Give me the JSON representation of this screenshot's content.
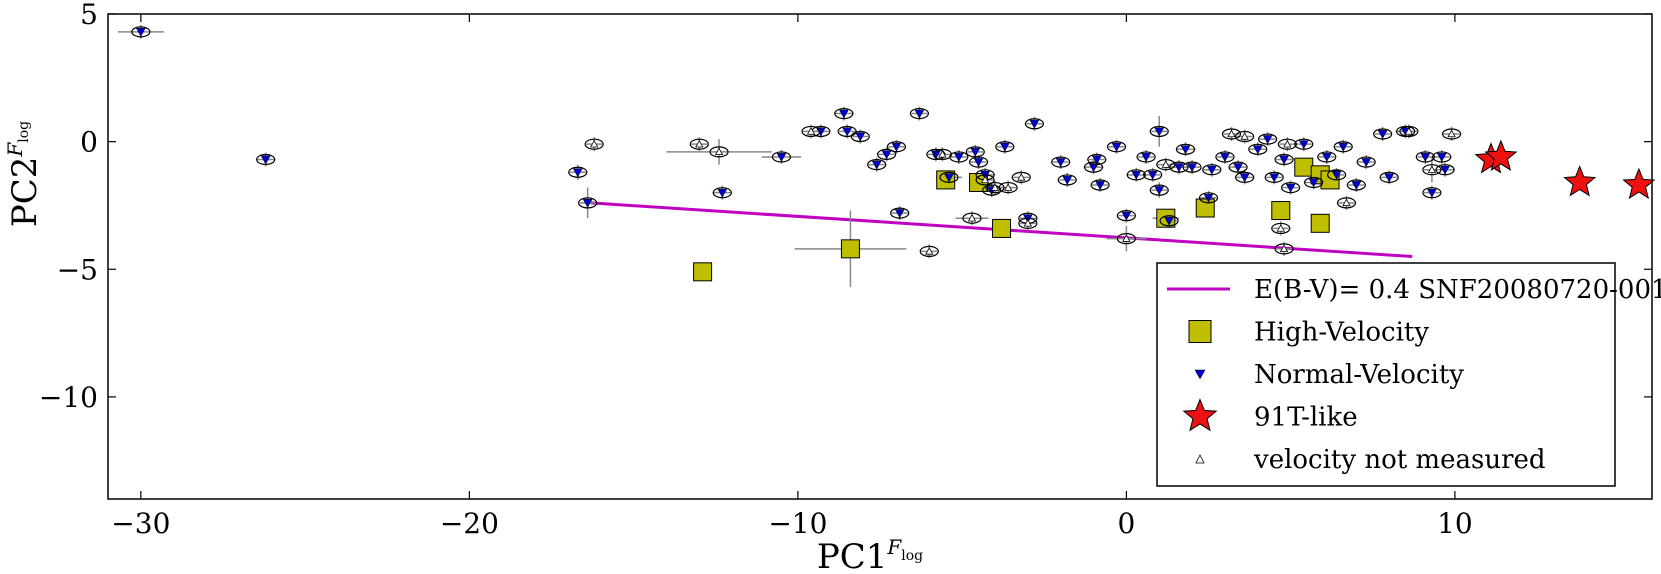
{
  "chart_data": {
    "type": "scatter",
    "title": "",
    "xlabel": "PC1",
    "ylabel": "PC2",
    "label_superscript": "F",
    "label_subscript": "log",
    "xlim": [
      -31,
      16
    ],
    "ylim": [
      -14,
      5
    ],
    "xticks": [
      -30,
      -20,
      -10,
      0,
      10
    ],
    "xtick_labels": [
      "−30",
      "−20",
      "−10",
      "0",
      "10"
    ],
    "yticks": [
      5,
      0,
      -5,
      -10
    ],
    "ytick_labels": [
      "5",
      "0",
      "−5",
      "−10"
    ],
    "legend_position": "lower-right",
    "line": {
      "name": "E(B-V)= 0.4 SNF20080720-001",
      "color": "#c000c0",
      "x": [
        -16.3,
        8.7
      ],
      "y": [
        -2.4,
        -4.5
      ]
    },
    "series": [
      {
        "name": "High-Velocity",
        "marker": "square",
        "color": "#bfbf00",
        "points": [
          [
            -12.9,
            -5.1,
            0.1,
            0.15
          ],
          [
            -8.4,
            -4.2,
            1.7,
            1.5
          ],
          [
            -5.5,
            -1.5,
            0.2,
            0.2
          ],
          [
            -4.5,
            -1.6,
            0.3,
            0.3
          ],
          [
            -3.8,
            -3.4,
            0.2,
            0.2
          ],
          [
            1.2,
            -3.0,
            0.4,
            0.3
          ],
          [
            2.4,
            -2.6,
            0.1,
            0.1
          ],
          [
            4.7,
            -2.7,
            0.1,
            0.1
          ],
          [
            5.4,
            -1.0,
            0.3,
            0.3
          ],
          [
            5.9,
            -1.3,
            0.3,
            0.3
          ],
          [
            5.9,
            -3.2,
            0.1,
            0.1
          ],
          [
            6.2,
            -1.5,
            0.2,
            0.2
          ]
        ]
      },
      {
        "name": "Normal-Velocity",
        "marker": "triangle-down",
        "color": "#0000cc",
        "points": [
          [
            -30,
            4.3,
            0.7,
            0.2
          ],
          [
            -26.2,
            -0.7,
            0.3,
            0.1
          ],
          [
            -16.7,
            -1.2,
            0,
            0.3
          ],
          [
            -16.4,
            -2.4,
            0,
            0.6
          ],
          [
            -12.3,
            -2.0,
            0.3,
            0.1
          ],
          [
            -10.5,
            -0.6,
            0.6,
            0.1
          ],
          [
            -9.3,
            0.4,
            0,
            0
          ],
          [
            -8.6,
            1.1,
            0.3,
            0.1
          ],
          [
            -8.5,
            0.4,
            0,
            0.1
          ],
          [
            -8.1,
            0.2,
            0,
            0.1
          ],
          [
            -7.6,
            -0.9,
            0,
            0
          ],
          [
            -7.3,
            -0.5,
            0,
            0
          ],
          [
            -7.0,
            -0.2,
            0,
            0
          ],
          [
            -6.9,
            -2.8,
            0,
            0
          ],
          [
            -6.3,
            1.1,
            0,
            0.1
          ],
          [
            -5.8,
            -0.5,
            0,
            0
          ],
          [
            -5.4,
            -1.4,
            0.4,
            0
          ],
          [
            -5.1,
            -0.6,
            0,
            0
          ],
          [
            -4.6,
            -0.4,
            0,
            0
          ],
          [
            -4.5,
            -0.8,
            0,
            0
          ],
          [
            -4.3,
            -1.3,
            0.3,
            0
          ],
          [
            -4.1,
            -1.9,
            0,
            0
          ],
          [
            -3.7,
            -0.2,
            0,
            0
          ],
          [
            -3.0,
            -3.0,
            0.2,
            0
          ],
          [
            -2.8,
            0.7,
            0,
            0
          ],
          [
            -2.0,
            -0.8,
            0,
            0
          ],
          [
            -1.8,
            -1.5,
            0,
            0
          ],
          [
            -1.0,
            -1.0,
            0.3,
            0
          ],
          [
            -0.9,
            -0.7,
            0,
            0
          ],
          [
            -0.8,
            -1.7,
            0,
            0
          ],
          [
            -0.3,
            -0.2,
            0,
            0
          ],
          [
            0,
            -2.9,
            0.1,
            0
          ],
          [
            0.3,
            -1.3,
            0.3,
            0
          ],
          [
            0.6,
            -0.6,
            0,
            0
          ],
          [
            0.8,
            -1.3,
            0.2,
            0
          ],
          [
            1.0,
            0.4,
            0,
            0.6
          ],
          [
            1.0,
            -1.9,
            0,
            0.3
          ],
          [
            1.3,
            -3.1,
            0,
            0
          ],
          [
            1.6,
            -1.0,
            0.4,
            0
          ],
          [
            1.8,
            -0.3,
            0.3,
            0
          ],
          [
            2.0,
            -1.0,
            0,
            0
          ],
          [
            2.5,
            -2.2,
            0,
            0
          ],
          [
            2.6,
            -1.1,
            0.2,
            0
          ],
          [
            3.0,
            -0.6,
            0,
            0
          ],
          [
            3.4,
            -1.0,
            0,
            0
          ],
          [
            3.6,
            -1.4,
            0.3,
            0
          ],
          [
            4.0,
            -0.3,
            0,
            0
          ],
          [
            4.3,
            0.1,
            0,
            0
          ],
          [
            4.5,
            -1.4,
            0.2,
            0
          ],
          [
            4.8,
            -0.7,
            0,
            0
          ],
          [
            5.0,
            -1.8,
            0.2,
            0
          ],
          [
            5.4,
            -0.1,
            0,
            0
          ],
          [
            5.7,
            -1.6,
            0.3,
            0
          ],
          [
            6.1,
            -0.6,
            0,
            0
          ],
          [
            6.4,
            -1.3,
            0.2,
            0
          ],
          [
            6.6,
            -0.2,
            0,
            0
          ],
          [
            7.0,
            -1.7,
            0.2,
            0
          ],
          [
            7.3,
            -0.8,
            0,
            0
          ],
          [
            7.8,
            0.3,
            0,
            0
          ],
          [
            8.0,
            -1.4,
            0,
            0
          ],
          [
            8.5,
            0.4,
            0.3,
            0
          ],
          [
            9.1,
            -0.6,
            0,
            0
          ],
          [
            9.3,
            -2.0,
            0.2,
            0
          ],
          [
            9.6,
            -0.6,
            0,
            0
          ],
          [
            9.7,
            -1.1,
            0.3,
            0
          ]
        ]
      },
      {
        "name": "91T-like",
        "marker": "star",
        "color": "#ee1111",
        "points": [
          [
            11.1,
            -0.7,
            0.2,
            0.2
          ],
          [
            11.4,
            -0.6,
            0.3,
            0.2
          ],
          [
            13.8,
            -1.6,
            0,
            0
          ],
          [
            15.6,
            -1.7,
            0,
            0
          ]
        ]
      },
      {
        "name": "velocity not measured",
        "marker": "triangle-up-open",
        "color": "#ffffff",
        "points": [
          [
            -16.2,
            -0.1,
            0,
            0.2
          ],
          [
            -13.0,
            -0.1,
            0,
            0
          ],
          [
            -12.4,
            -0.4,
            1.6,
            0.5
          ],
          [
            -9.6,
            0.4,
            0,
            0
          ],
          [
            -6.0,
            -4.3,
            0,
            0
          ],
          [
            -5.6,
            -0.5,
            0,
            0
          ],
          [
            -4.7,
            -3.0,
            0.5,
            0
          ],
          [
            -4.3,
            -1.5,
            0,
            0
          ],
          [
            -4.0,
            -1.8,
            0.3,
            0
          ],
          [
            -3.6,
            -1.8,
            0.2,
            0
          ],
          [
            -3.2,
            -1.4,
            0,
            0
          ],
          [
            -3.0,
            -3.2,
            0,
            0
          ],
          [
            0,
            -3.8,
            0.6,
            0.5
          ],
          [
            1.2,
            -0.9,
            0.2,
            0
          ],
          [
            3.2,
            0.3,
            0.2,
            0
          ],
          [
            3.6,
            0.2,
            0,
            0
          ],
          [
            4.7,
            -3.4,
            0,
            0
          ],
          [
            4.8,
            -4.2,
            0,
            0
          ],
          [
            4.9,
            -0.1,
            0,
            0
          ],
          [
            6.7,
            -2.4,
            0,
            0
          ],
          [
            8.6,
            0.4,
            0,
            0
          ],
          [
            9.3,
            -1.1,
            0,
            0.5
          ],
          [
            9.9,
            0.3,
            0,
            0
          ]
        ]
      }
    ]
  }
}
